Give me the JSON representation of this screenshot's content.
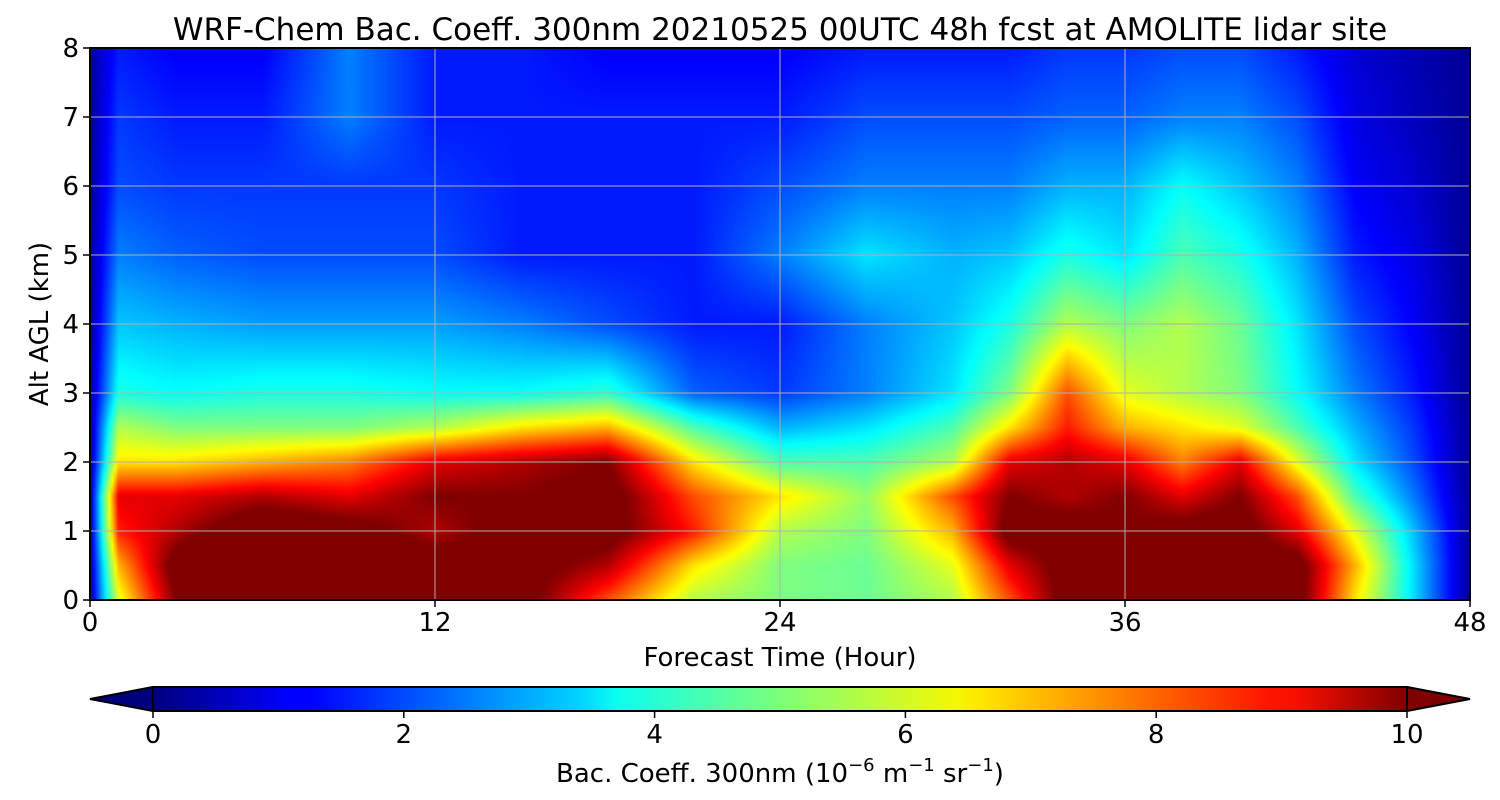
{
  "chart_data": {
    "type": "heatmap",
    "title": "WRF-Chem Bac. Coeff. 300nm  20210525 00UTC 48h fcst at AMOLITE lidar site",
    "xlabel": "Forecast Time (Hour)",
    "ylabel": "Alt AGL (km)",
    "xlim": [
      0,
      48
    ],
    "ylim": [
      0,
      8
    ],
    "xticks": [
      "0",
      "12",
      "24",
      "36",
      "48"
    ],
    "yticks": [
      "0",
      "1",
      "2",
      "3",
      "4",
      "5",
      "6",
      "7",
      "8"
    ],
    "grid": true,
    "colormap": "jet",
    "colorbar": {
      "label_main": "Bac. Coeff. 300nm  (10",
      "label_exp1": "−6",
      "label_mid": " m",
      "label_exp2": "−1",
      "label_end": " sr",
      "label_exp3": "−1",
      "label_close": ")",
      "range": [
        0,
        10
      ],
      "ticks": [
        "0",
        "2",
        "4",
        "6",
        "8",
        "10"
      ],
      "extend": "both",
      "under_color": "#00007f",
      "over_color": "#7f0000"
    },
    "x_hours": [
      0,
      1,
      3,
      6,
      9,
      12,
      15,
      18,
      21,
      24,
      27,
      30,
      32,
      34,
      36,
      38,
      40,
      42,
      44,
      46,
      48
    ],
    "y_km": [
      0,
      0.5,
      1,
      1.5,
      2,
      2.5,
      3,
      4,
      5,
      6,
      7,
      8
    ],
    "z_values": [
      [
        0.5,
        6.0,
        10.0,
        10.5,
        10.5,
        10.0,
        10.5,
        8.0,
        5.5,
        5.0,
        4.8,
        5.5,
        8.0,
        10.5,
        10.5,
        10.5,
        10.5,
        10.5,
        6.5,
        3.5,
        0.2
      ],
      [
        0.5,
        7.0,
        10.5,
        11.0,
        11.0,
        10.5,
        10.5,
        9.5,
        6.5,
        5.0,
        4.8,
        6.0,
        9.0,
        10.5,
        10.5,
        10.5,
        10.5,
        10.5,
        7.0,
        3.5,
        0.2
      ],
      [
        0.5,
        8.5,
        9.5,
        11.0,
        10.5,
        9.5,
        10.5,
        10.5,
        8.5,
        5.5,
        5.0,
        7.0,
        10.5,
        10.5,
        10.0,
        10.5,
        10.5,
        9.0,
        6.0,
        3.2,
        0.2
      ],
      [
        0.5,
        9.0,
        9.0,
        9.5,
        9.0,
        10.0,
        10.0,
        10.5,
        8.0,
        6.5,
        5.2,
        8.0,
        10.0,
        9.5,
        10.0,
        9.0,
        10.0,
        8.0,
        4.5,
        2.5,
        0.2
      ],
      [
        0.4,
        6.5,
        6.5,
        7.0,
        7.5,
        9.0,
        9.5,
        10.0,
        6.5,
        4.5,
        4.5,
        5.5,
        9.0,
        9.5,
        9.0,
        7.5,
        9.0,
        6.0,
        3.5,
        2.0,
        0.2
      ],
      [
        0.4,
        5.5,
        5.0,
        5.0,
        5.0,
        5.5,
        6.5,
        7.0,
        4.5,
        3.0,
        3.5,
        4.5,
        6.5,
        8.5,
        7.0,
        6.5,
        6.0,
        4.5,
        3.0,
        1.8,
        0.2
      ],
      [
        0.4,
        4.0,
        3.8,
        4.0,
        4.0,
        3.8,
        3.8,
        4.2,
        2.2,
        1.8,
        2.5,
        3.5,
        5.0,
        8.0,
        6.0,
        5.5,
        5.0,
        3.8,
        2.5,
        1.5,
        0.2
      ],
      [
        0.3,
        3.2,
        3.0,
        2.8,
        2.8,
        2.8,
        2.5,
        2.0,
        1.5,
        1.5,
        2.5,
        3.2,
        4.0,
        5.5,
        5.0,
        5.5,
        4.8,
        3.5,
        2.0,
        1.2,
        0.2
      ],
      [
        0.3,
        2.5,
        2.2,
        2.0,
        2.0,
        2.0,
        1.5,
        1.5,
        1.5,
        2.5,
        3.5,
        3.0,
        3.2,
        4.0,
        3.5,
        4.5,
        4.0,
        3.0,
        1.5,
        1.0,
        0.2
      ],
      [
        0.3,
        2.0,
        1.8,
        1.8,
        1.8,
        1.8,
        1.5,
        1.5,
        1.5,
        2.0,
        2.5,
        2.5,
        2.5,
        3.0,
        3.0,
        3.8,
        3.2,
        2.5,
        1.2,
        0.8,
        0.2
      ],
      [
        0.3,
        1.8,
        1.5,
        1.5,
        2.5,
        1.5,
        1.5,
        1.5,
        1.5,
        1.5,
        2.0,
        2.0,
        2.0,
        2.2,
        2.2,
        2.5,
        2.5,
        2.0,
        1.0,
        0.6,
        0.2
      ],
      [
        0.3,
        1.5,
        1.2,
        1.2,
        2.5,
        1.5,
        1.5,
        1.2,
        1.2,
        1.2,
        1.5,
        1.5,
        1.5,
        1.8,
        1.8,
        2.0,
        2.0,
        1.5,
        0.8,
        0.5,
        0.2
      ]
    ]
  }
}
